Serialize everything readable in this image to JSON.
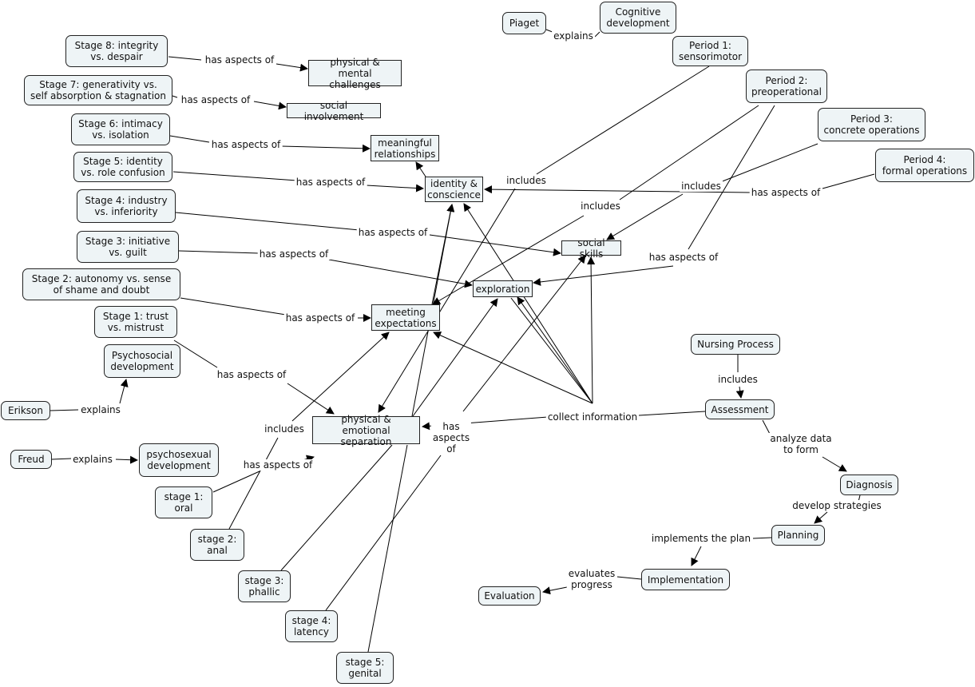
{
  "nodes": {
    "piaget": "Piaget",
    "cognitive": "Cognitive\ndevelopment",
    "p1": "Period 1:\nsensorimotor",
    "p2": "Period 2:\npreoperational",
    "p3": "Period 3:\nconcrete operations",
    "p4": "Period 4:\nformal operations",
    "s8": "Stage 8: integrity\nvs. despair",
    "s7": "Stage 7: generativity vs.\nself absorption & stagnation",
    "s6": "Stage 6: intimacy\nvs. isolation",
    "s5": "Stage 5: identity\nvs. role confusion",
    "s4": "Stage 4: industry\nvs. inferiority",
    "s3": "Stage 3: initiative\nvs. guilt",
    "s2": "Stage 2: autonomy vs. sense\nof shame and doubt",
    "s1": "Stage 1: trust\nvs. mistrust",
    "psychosocial": "Psychosocial\ndevelopment",
    "erikson": "Erikson",
    "freud": "Freud",
    "psychosexual": "psychosexual\ndevelopment",
    "so1": "stage 1:\noral",
    "so2": "stage 2:\nanal",
    "so3": "stage 3:\nphallic",
    "so4": "stage 4:\nlatency",
    "so5": "stage 5:\ngenital",
    "phys_mental": "physical &\nmental challenges",
    "social_inv": "social involvement",
    "meaningful": "meaningful\nrelationships",
    "identity": "identity &\nconscience",
    "social_skills": "social skills",
    "exploration": "exploration",
    "meeting": "meeting\nexpectations",
    "phys_emot": "physical &\nemotional separation",
    "nursing": "Nursing Process",
    "assessment": "Assessment",
    "diagnosis": "Diagnosis",
    "planning": "Planning",
    "implementation": "Implementation",
    "evaluation": "Evaluation"
  },
  "links": {
    "piaget_explains": "explains",
    "s8_has": "has aspects of",
    "s7_has": "has aspects of",
    "s6_has": "has aspects of",
    "s5_has": "has aspects of",
    "s4_has": "has aspects of",
    "s3_has": "has aspects of",
    "s2_has": "has aspects of",
    "s1_has": "has aspects of",
    "p1_includes": "includes",
    "p2_includes": "includes",
    "p3_includes": "includes",
    "p4_has": "has aspects of",
    "p2_has": "has aspects of",
    "erikson_explains": "explains",
    "freud_explains": "explains",
    "so2_includes": "includes",
    "so1_has": "has aspects of",
    "so4_has": "has\naspects\nof",
    "collect": "collect information",
    "nursing_includes": "includes",
    "analyze": "analyze data\nto form",
    "develop": "develop strategies",
    "implements": "implements the plan",
    "evaluates": "evaluates\nprogress"
  }
}
